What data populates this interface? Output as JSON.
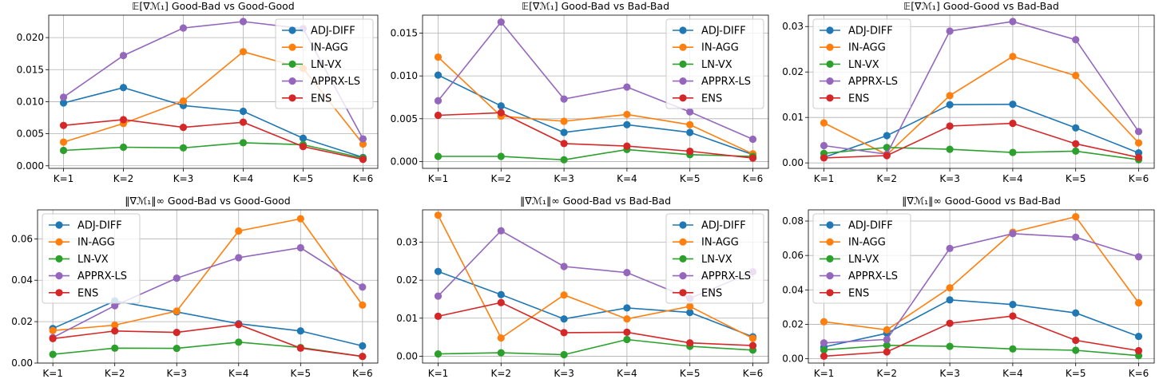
{
  "colors": {
    "ADJ-DIFF": "#1f77b4",
    "IN-AGG": "#ff7f0e",
    "LN-VX": "#2ca02c",
    "APPRX-LS": "#9467bd",
    "ENS": "#d62728"
  },
  "chart_data": [
    {
      "type": "line",
      "title": "𝔼[∇ℳ₁] Good-Bad vs Good-Good",
      "categories": [
        "K=1",
        "K=2",
        "K=3",
        "K=4",
        "K=5",
        "K=6"
      ],
      "ylim": [
        -0.0004,
        0.0235
      ],
      "yticks": [
        0,
        0.005,
        0.01,
        0.015,
        0.02
      ],
      "ytick_labels": [
        "0.000",
        "0.005",
        "0.010",
        "0.015",
        "0.020"
      ],
      "legend_loc": "upper right",
      "grid": true,
      "series": [
        {
          "name": "ADJ-DIFF",
          "values": [
            0.0098,
            0.0122,
            0.0094,
            0.0085,
            0.0043,
            0.0013
          ]
        },
        {
          "name": "IN-AGG",
          "values": [
            0.0037,
            0.0066,
            0.0101,
            0.0178,
            0.0152,
            0.0034
          ]
        },
        {
          "name": "LN-VX",
          "values": [
            0.0024,
            0.0029,
            0.0028,
            0.0036,
            0.0033,
            0.0012
          ]
        },
        {
          "name": "APPRX-LS",
          "values": [
            0.0107,
            0.0172,
            0.0215,
            0.0225,
            0.0214,
            0.0042
          ]
        },
        {
          "name": "ENS",
          "values": [
            0.0063,
            0.0072,
            0.006,
            0.0068,
            0.003,
            0.001
          ]
        }
      ]
    },
    {
      "type": "line",
      "title": "𝔼[∇ℳ₁] Good-Bad vs Bad-Bad",
      "categories": [
        "K=1",
        "K=2",
        "K=3",
        "K=4",
        "K=5",
        "K=6"
      ],
      "ylim": [
        -0.0008,
        0.0171
      ],
      "yticks": [
        0,
        0.005,
        0.01,
        0.015
      ],
      "ytick_labels": [
        "0.000",
        "0.005",
        "0.010",
        "0.015"
      ],
      "legend_loc": "upper right",
      "grid": true,
      "series": [
        {
          "name": "ADJ-DIFF",
          "values": [
            0.0101,
            0.0065,
            0.0034,
            0.0043,
            0.0034,
            0.0008
          ]
        },
        {
          "name": "IN-AGG",
          "values": [
            0.0122,
            0.0053,
            0.0047,
            0.0055,
            0.0043,
            0.0009
          ]
        },
        {
          "name": "LN-VX",
          "values": [
            0.0006,
            0.0006,
            0.0002,
            0.0014,
            0.0008,
            0.0006
          ]
        },
        {
          "name": "APPRX-LS",
          "values": [
            0.0071,
            0.0163,
            0.0073,
            0.0087,
            0.0058,
            0.0026
          ]
        },
        {
          "name": "ENS",
          "values": [
            0.0054,
            0.0057,
            0.0021,
            0.0018,
            0.0012,
            0.0004
          ]
        }
      ]
    },
    {
      "type": "line",
      "title": "𝔼[∇ℳ₁] Good-Good vs Bad-Bad",
      "categories": [
        "K=1",
        "K=2",
        "K=3",
        "K=4",
        "K=5",
        "K=6"
      ],
      "ylim": [
        -0.0012,
        0.0325
      ],
      "yticks": [
        0,
        0.01,
        0.02,
        0.03
      ],
      "ytick_labels": [
        "0.00",
        "0.01",
        "0.02",
        "0.03"
      ],
      "legend_loc": "upper left",
      "grid": true,
      "series": [
        {
          "name": "ADJ-DIFF",
          "values": [
            0.0012,
            0.006,
            0.0128,
            0.0129,
            0.0077,
            0.0022
          ]
        },
        {
          "name": "IN-AGG",
          "values": [
            0.0088,
            0.0018,
            0.0148,
            0.0234,
            0.0192,
            0.0044
          ]
        },
        {
          "name": "LN-VX",
          "values": [
            0.0021,
            0.0034,
            0.003,
            0.0023,
            0.0026,
            0.0007
          ]
        },
        {
          "name": "APPRX-LS",
          "values": [
            0.0038,
            0.0019,
            0.029,
            0.0311,
            0.0271,
            0.0069
          ]
        },
        {
          "name": "ENS",
          "values": [
            0.0011,
            0.0016,
            0.0081,
            0.0087,
            0.0042,
            0.0012
          ]
        }
      ]
    },
    {
      "type": "line",
      "title": "‖∇ℳ₁‖∞ Good-Bad vs Good-Good",
      "categories": [
        "K=1",
        "K=2",
        "K=3",
        "K=4",
        "K=5",
        "K=6"
      ],
      "ylim": [
        0,
        0.074
      ],
      "yticks": [
        0,
        0.02,
        0.04,
        0.06
      ],
      "ytick_labels": [
        "0.00",
        "0.02",
        "0.04",
        "0.06"
      ],
      "legend_loc": "upper left",
      "grid": true,
      "series": [
        {
          "name": "ADJ-DIFF",
          "values": [
            0.0167,
            0.03,
            0.0247,
            0.019,
            0.0155,
            0.0083
          ]
        },
        {
          "name": "IN-AGG",
          "values": [
            0.0157,
            0.0183,
            0.0251,
            0.0638,
            0.0697,
            0.028
          ]
        },
        {
          "name": "LN-VX",
          "values": [
            0.0042,
            0.0072,
            0.0071,
            0.0101,
            0.0075,
            0.0032
          ]
        },
        {
          "name": "APPRX-LS",
          "values": [
            0.0123,
            0.0277,
            0.041,
            0.0509,
            0.0557,
            0.0367
          ]
        },
        {
          "name": "ENS",
          "values": [
            0.0118,
            0.0155,
            0.0148,
            0.0186,
            0.0072,
            0.0032
          ]
        }
      ]
    },
    {
      "type": "line",
      "title": "‖∇ℳ₁‖∞ Good-Bad vs Bad-Bad",
      "categories": [
        "K=1",
        "K=2",
        "K=3",
        "K=4",
        "K=5",
        "K=6"
      ],
      "ylim": [
        -0.0018,
        0.0385
      ],
      "yticks": [
        0,
        0.01,
        0.02,
        0.03
      ],
      "ytick_labels": [
        "0.00",
        "0.01",
        "0.02",
        "0.03"
      ],
      "legend_loc": "upper right",
      "grid": true,
      "series": [
        {
          "name": "ADJ-DIFF",
          "values": [
            0.0223,
            0.0162,
            0.0098,
            0.0127,
            0.0115,
            0.0051
          ]
        },
        {
          "name": "IN-AGG",
          "values": [
            0.0371,
            0.0048,
            0.0161,
            0.0098,
            0.0131,
            0.0047
          ]
        },
        {
          "name": "LN-VX",
          "values": [
            0.0006,
            0.0009,
            0.0004,
            0.0044,
            0.0026,
            0.0016
          ]
        },
        {
          "name": "APPRX-LS",
          "values": [
            0.0158,
            0.033,
            0.0236,
            0.022,
            0.0152,
            0.0222
          ]
        },
        {
          "name": "ENS",
          "values": [
            0.0105,
            0.0141,
            0.0062,
            0.0063,
            0.0035,
            0.0028
          ]
        }
      ]
    },
    {
      "type": "line",
      "title": "‖∇ℳ₁‖∞ Good-Good vs Bad-Bad",
      "categories": [
        "K=1",
        "K=2",
        "K=3",
        "K=4",
        "K=5",
        "K=6"
      ],
      "ylim": [
        -0.0025,
        0.0865
      ],
      "yticks": [
        0,
        0.02,
        0.04,
        0.06,
        0.08
      ],
      "ytick_labels": [
        "0.00",
        "0.02",
        "0.04",
        "0.06",
        "0.08"
      ],
      "legend_loc": "upper left",
      "grid": true,
      "series": [
        {
          "name": "ADJ-DIFF",
          "values": [
            0.0068,
            0.0148,
            0.0342,
            0.0315,
            0.0266,
            0.013
          ]
        },
        {
          "name": "IN-AGG",
          "values": [
            0.0215,
            0.0168,
            0.0412,
            0.0735,
            0.0825,
            0.0325
          ]
        },
        {
          "name": "LN-VX",
          "values": [
            0.0051,
            0.0078,
            0.0072,
            0.0057,
            0.0049,
            0.0018
          ]
        },
        {
          "name": "APPRX-LS",
          "values": [
            0.0092,
            0.0112,
            0.0641,
            0.0727,
            0.0706,
            0.0592
          ]
        },
        {
          "name": "ENS",
          "values": [
            0.0015,
            0.004,
            0.0206,
            0.0248,
            0.0107,
            0.0047
          ]
        }
      ]
    }
  ]
}
